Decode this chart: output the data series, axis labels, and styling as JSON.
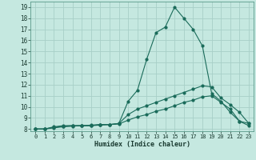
{
  "title": "",
  "xlabel": "Humidex (Indice chaleur)",
  "ylabel": "",
  "bg_color": "#c5e8e0",
  "grid_color": "#a8cfc8",
  "line_color": "#1a6b5a",
  "xlim": [
    -0.5,
    23.5
  ],
  "ylim": [
    7.8,
    19.5
  ],
  "xticks": [
    0,
    1,
    2,
    3,
    4,
    5,
    6,
    7,
    8,
    9,
    10,
    11,
    12,
    13,
    14,
    15,
    16,
    17,
    18,
    19,
    20,
    21,
    22,
    23
  ],
  "yticks": [
    8,
    9,
    10,
    11,
    12,
    13,
    14,
    15,
    16,
    17,
    18,
    19
  ],
  "line1_x": [
    0,
    1,
    2,
    3,
    4,
    5,
    6,
    7,
    8,
    9,
    10,
    11,
    12,
    13,
    14,
    15,
    16,
    17,
    18,
    19,
    20,
    21,
    22,
    23
  ],
  "line1_y": [
    8.0,
    8.0,
    8.2,
    8.3,
    8.3,
    8.3,
    8.3,
    8.4,
    8.4,
    8.5,
    10.5,
    11.5,
    14.3,
    16.7,
    17.2,
    19.0,
    18.0,
    17.0,
    15.5,
    11.2,
    10.5,
    9.5,
    8.7,
    8.5
  ],
  "line2_x": [
    0,
    1,
    2,
    3,
    4,
    5,
    6,
    7,
    8,
    9,
    10,
    11,
    12,
    13,
    14,
    15,
    16,
    17,
    18,
    19,
    20,
    21,
    22,
    23
  ],
  "line2_y": [
    8.0,
    8.0,
    8.15,
    8.25,
    8.3,
    8.3,
    8.35,
    8.4,
    8.4,
    8.5,
    9.3,
    9.8,
    10.1,
    10.4,
    10.7,
    11.0,
    11.3,
    11.6,
    11.9,
    11.8,
    10.8,
    10.2,
    9.5,
    8.5
  ],
  "line3_x": [
    0,
    1,
    2,
    3,
    4,
    5,
    6,
    7,
    8,
    9,
    10,
    11,
    12,
    13,
    14,
    15,
    16,
    17,
    18,
    19,
    20,
    21,
    22,
    23
  ],
  "line3_y": [
    8.0,
    8.0,
    8.1,
    8.2,
    8.25,
    8.3,
    8.3,
    8.35,
    8.4,
    8.45,
    8.8,
    9.1,
    9.3,
    9.6,
    9.8,
    10.1,
    10.4,
    10.6,
    10.9,
    11.0,
    10.4,
    9.8,
    8.7,
    8.3
  ]
}
